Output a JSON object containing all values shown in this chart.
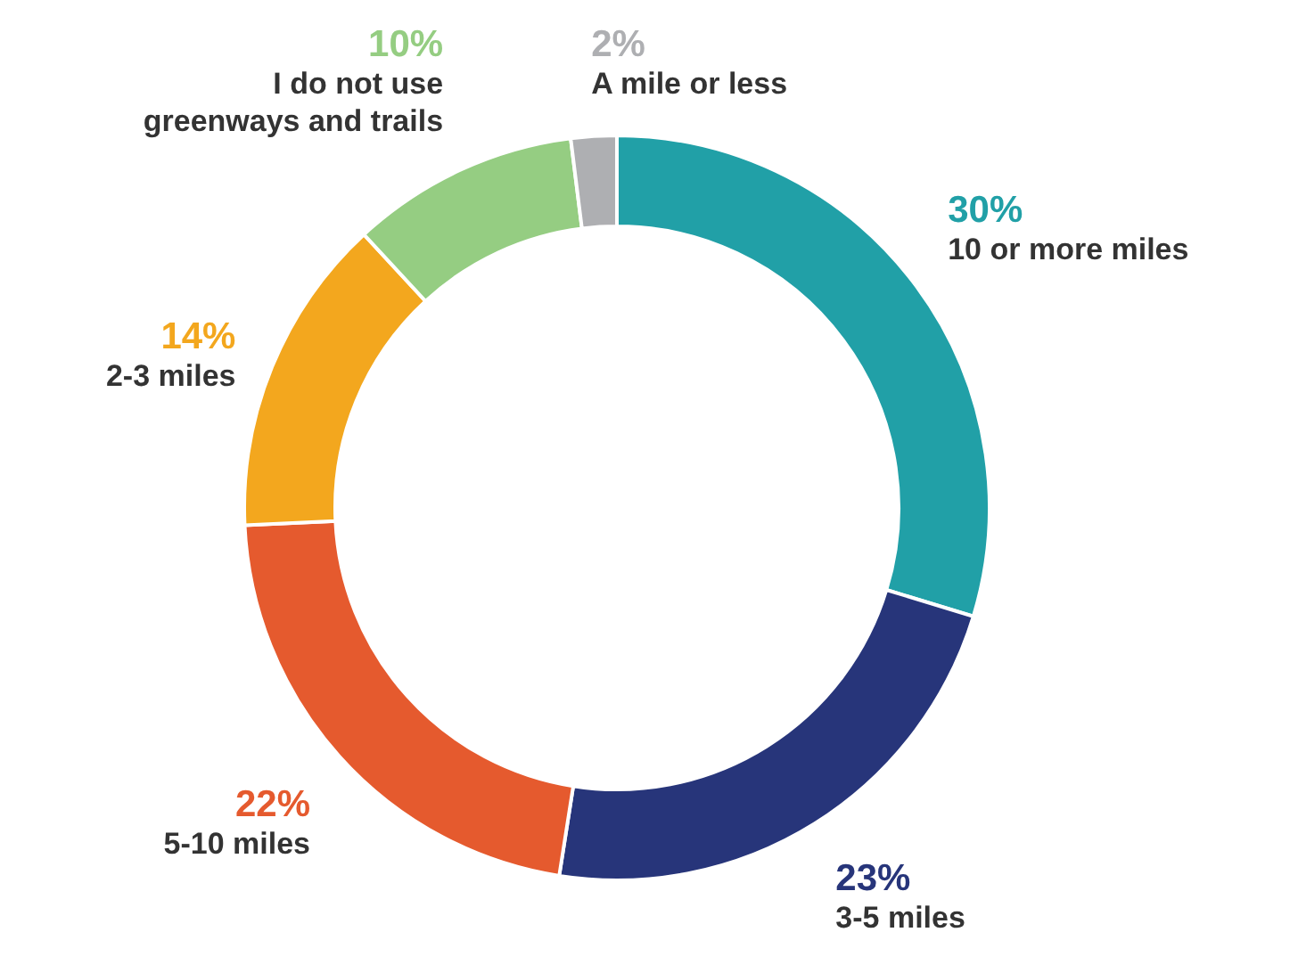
{
  "chart_data": {
    "type": "donut",
    "categories": [
      "10 or more miles",
      "3-5 miles",
      "5-10 miles",
      "2-3 miles",
      "I do not use greenways and trails",
      "A mile or less"
    ],
    "values": [
      30,
      23,
      22,
      14,
      10,
      2
    ],
    "value_labels": [
      "30%",
      "23%",
      "22%",
      "14%",
      "10%",
      "2%"
    ],
    "colors": [
      "#21a0a7",
      "#27357a",
      "#e55a2e",
      "#f3a71e",
      "#95cd82",
      "#aeafb2"
    ]
  }
}
